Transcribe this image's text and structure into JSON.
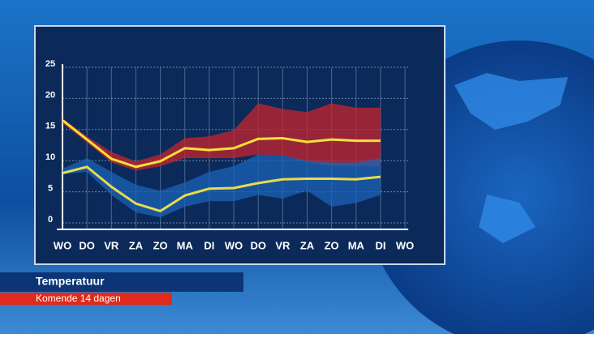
{
  "caption": {
    "title": "Temperatuur",
    "subtitle": "Komende 14 dagen"
  },
  "chart_data": {
    "type": "line",
    "categories": [
      "WO",
      "DO",
      "VR",
      "ZA",
      "ZO",
      "MA",
      "DI",
      "WO",
      "DO",
      "VR",
      "ZA",
      "ZO",
      "MA",
      "DI",
      "WO"
    ],
    "ylim": [
      0,
      25
    ],
    "yticks": [
      0,
      5,
      10,
      15,
      20,
      25
    ],
    "grid": true,
    "bands": [
      {
        "color": "#c8242c",
        "lower": [
          16,
          12.9,
          9.7,
          8.4,
          9.1,
          10.4,
          10.4,
          10.4,
          11,
          10.8,
          9.7,
          9.1,
          9.1,
          9.1,
          null
        ],
        "upper": [
          16.8,
          13.9,
          11.4,
          9.9,
          11,
          13.6,
          13.9,
          14.9,
          19.2,
          18.3,
          17.8,
          19.2,
          18.5,
          18.5,
          null
        ]
      },
      {
        "color": "#1c63b8",
        "lower": [
          7.8,
          8.2,
          4.5,
          1.7,
          0.9,
          2.6,
          3.5,
          3.5,
          4.5,
          3.9,
          5.2,
          2.6,
          3.2,
          4.5,
          null
        ],
        "upper": [
          8.7,
          10.4,
          8.2,
          6.1,
          5.2,
          6.5,
          8.2,
          9.1,
          11,
          10.8,
          10,
          9.7,
          9.7,
          10.4,
          null
        ]
      }
    ],
    "series": [
      {
        "color": "#f5e03a",
        "values": [
          16.5,
          13.4,
          10.3,
          9,
          9.9,
          12,
          11.7,
          12,
          13.5,
          13.6,
          13,
          13.4,
          13.2,
          13.2,
          null
        ]
      },
      {
        "color": "#e8dc4a",
        "values": [
          8,
          9,
          5.8,
          3.1,
          1.9,
          4.4,
          5.5,
          5.6,
          6.4,
          7,
          7.1,
          7.1,
          7,
          7.4,
          null
        ]
      }
    ]
  }
}
